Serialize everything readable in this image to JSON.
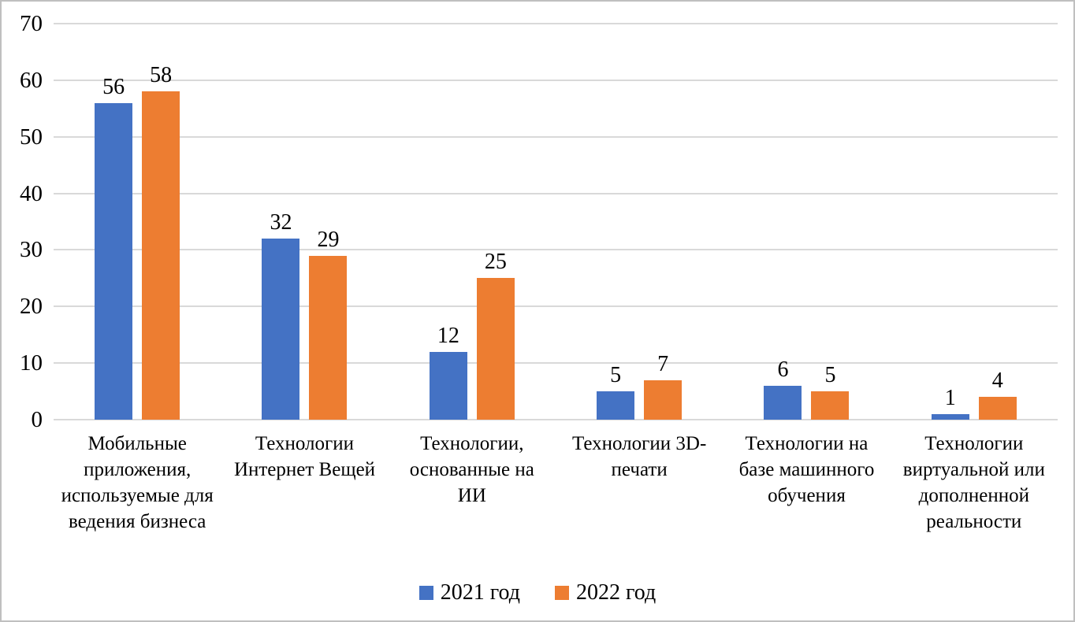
{
  "chart_data": {
    "type": "bar",
    "title": "",
    "xlabel": "",
    "ylabel": "",
    "categories": [
      "Мобильные приложения, используемые для ведения бизнеса",
      "Технологии Интернет Вещей",
      "Технологии, основанные на ИИ",
      "Технологии 3D-печати",
      "Технологии на базе машинного обучения",
      "Технологии виртуальной или дополненной реальности"
    ],
    "series": [
      {
        "name": "2021 год",
        "color": "#4472C4",
        "values": [
          56,
          32,
          12,
          5,
          6,
          1
        ]
      },
      {
        "name": "2022 год",
        "color": "#ED7D31",
        "values": [
          58,
          29,
          25,
          7,
          5,
          4
        ]
      }
    ],
    "ylim": [
      0,
      70
    ],
    "yticks": [
      0,
      10,
      20,
      30,
      40,
      50,
      60,
      70
    ],
    "grid": true,
    "legend_position": "bottom"
  },
  "style": {
    "gridline_color": "#d9d9d9",
    "border_color": "#bfbfbf",
    "text_color": "#000000",
    "background": "#ffffff"
  }
}
